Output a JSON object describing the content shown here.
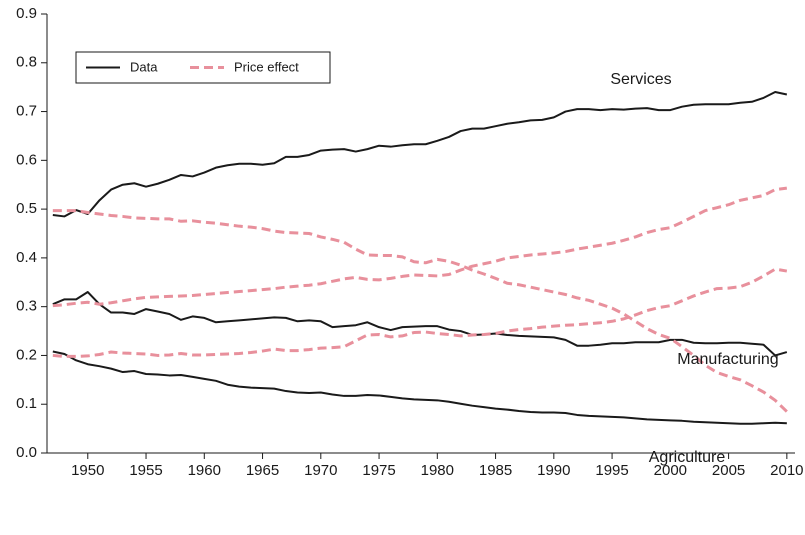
{
  "chart_data": {
    "type": "line",
    "x": [
      1947,
      1948,
      1949,
      1950,
      1951,
      1952,
      1953,
      1954,
      1955,
      1956,
      1957,
      1958,
      1959,
      1960,
      1961,
      1962,
      1963,
      1964,
      1965,
      1966,
      1967,
      1968,
      1969,
      1970,
      1971,
      1972,
      1973,
      1974,
      1975,
      1976,
      1977,
      1978,
      1979,
      1980,
      1981,
      1982,
      1983,
      1984,
      1985,
      1986,
      1987,
      1988,
      1989,
      1990,
      1991,
      1992,
      1993,
      1994,
      1995,
      1996,
      1997,
      1998,
      1999,
      2000,
      2001,
      2002,
      2003,
      2004,
      2005,
      2006,
      2007,
      2008,
      2009,
      2010
    ],
    "xlim": [
      1946.5,
      2010.7
    ],
    "xticks": [
      1950,
      1955,
      1960,
      1965,
      1970,
      1975,
      1980,
      1985,
      1990,
      1995,
      2000,
      2005,
      2010
    ],
    "ylim": [
      0,
      0.9
    ],
    "yticks": [
      {
        "value": 0,
        "label": "0.0"
      },
      0.1,
      0.2,
      0.3,
      0.4,
      0.5,
      0.6,
      0.7,
      0.8,
      0.9
    ],
    "legend_position": "upper left",
    "groups": [
      {
        "name": "Data",
        "color": "#1a1a1a",
        "dashed": false,
        "series": [
          {
            "name": "Services",
            "values": [
              0.488,
              0.485,
              0.498,
              0.49,
              0.518,
              0.54,
              0.55,
              0.553,
              0.546,
              0.552,
              0.56,
              0.57,
              0.567,
              0.575,
              0.585,
              0.59,
              0.593,
              0.593,
              0.591,
              0.594,
              0.607,
              0.607,
              0.611,
              0.62,
              0.622,
              0.623,
              0.618,
              0.623,
              0.63,
              0.628,
              0.631,
              0.633,
              0.633,
              0.64,
              0.648,
              0.66,
              0.665,
              0.665,
              0.67,
              0.675,
              0.678,
              0.682,
              0.683,
              0.688,
              0.7,
              0.705,
              0.705,
              0.703,
              0.705,
              0.704,
              0.706,
              0.707,
              0.703,
              0.703,
              0.71,
              0.714,
              0.715,
              0.715,
              0.715,
              0.718,
              0.72,
              0.728,
              0.74,
              0.735
            ]
          },
          {
            "name": "Manufacturing",
            "values": [
              0.305,
              0.315,
              0.315,
              0.33,
              0.305,
              0.288,
              0.288,
              0.285,
              0.295,
              0.29,
              0.285,
              0.273,
              0.28,
              0.277,
              0.268,
              0.27,
              0.272,
              0.274,
              0.276,
              0.278,
              0.277,
              0.27,
              0.272,
              0.27,
              0.258,
              0.26,
              0.262,
              0.268,
              0.258,
              0.252,
              0.258,
              0.259,
              0.26,
              0.26,
              0.253,
              0.25,
              0.242,
              0.243,
              0.245,
              0.242,
              0.24,
              0.239,
              0.238,
              0.237,
              0.232,
              0.22,
              0.22,
              0.222,
              0.225,
              0.225,
              0.227,
              0.227,
              0.227,
              0.232,
              0.232,
              0.226,
              0.225,
              0.225,
              0.226,
              0.226,
              0.224,
              0.222,
              0.2,
              0.207
            ]
          },
          {
            "name": "Agriculture",
            "values": [
              0.208,
              0.203,
              0.19,
              0.182,
              0.178,
              0.173,
              0.166,
              0.168,
              0.162,
              0.161,
              0.159,
              0.16,
              0.156,
              0.152,
              0.148,
              0.14,
              0.136,
              0.134,
              0.133,
              0.132,
              0.127,
              0.124,
              0.123,
              0.124,
              0.12,
              0.117,
              0.117,
              0.119,
              0.118,
              0.115,
              0.112,
              0.11,
              0.109,
              0.108,
              0.105,
              0.101,
              0.097,
              0.094,
              0.091,
              0.089,
              0.086,
              0.084,
              0.083,
              0.083,
              0.082,
              0.078,
              0.076,
              0.075,
              0.074,
              0.073,
              0.071,
              0.069,
              0.068,
              0.067,
              0.066,
              0.064,
              0.063,
              0.062,
              0.061,
              0.06,
              0.06,
              0.061,
              0.062,
              0.061
            ]
          }
        ]
      },
      {
        "name": "Price effect",
        "color": "#e8909c",
        "dashed": true,
        "series": [
          {
            "values": [
              0.302,
              0.304,
              0.307,
              0.309,
              0.305,
              0.308,
              0.312,
              0.316,
              0.319,
              0.32,
              0.321,
              0.322,
              0.323,
              0.325,
              0.327,
              0.329,
              0.331,
              0.333,
              0.335,
              0.337,
              0.34,
              0.342,
              0.344,
              0.347,
              0.352,
              0.357,
              0.36,
              0.356,
              0.355,
              0.358,
              0.362,
              0.365,
              0.364,
              0.363,
              0.366,
              0.375,
              0.383,
              0.388,
              0.393,
              0.4,
              0.403,
              0.406,
              0.408,
              0.41,
              0.413,
              0.418,
              0.422,
              0.426,
              0.43,
              0.436,
              0.443,
              0.452,
              0.458,
              0.462,
              0.473,
              0.485,
              0.497,
              0.503,
              0.509,
              0.518,
              0.523,
              0.528,
              0.54,
              0.543
            ]
          },
          {
            "values": [
              0.497,
              0.497,
              0.497,
              0.493,
              0.49,
              0.487,
              0.485,
              0.482,
              0.481,
              0.48,
              0.48,
              0.475,
              0.476,
              0.473,
              0.471,
              0.468,
              0.465,
              0.463,
              0.46,
              0.455,
              0.452,
              0.451,
              0.45,
              0.443,
              0.438,
              0.432,
              0.418,
              0.406,
              0.405,
              0.405,
              0.402,
              0.392,
              0.39,
              0.397,
              0.393,
              0.385,
              0.375,
              0.367,
              0.358,
              0.348,
              0.345,
              0.34,
              0.335,
              0.33,
              0.325,
              0.318,
              0.313,
              0.305,
              0.297,
              0.285,
              0.27,
              0.255,
              0.243,
              0.235,
              0.218,
              0.2,
              0.18,
              0.165,
              0.157,
              0.15,
              0.138,
              0.125,
              0.108,
              0.085
            ]
          },
          {
            "values": [
              0.2,
              0.198,
              0.198,
              0.199,
              0.202,
              0.207,
              0.205,
              0.204,
              0.203,
              0.2,
              0.201,
              0.204,
              0.201,
              0.201,
              0.202,
              0.203,
              0.204,
              0.206,
              0.209,
              0.213,
              0.21,
              0.21,
              0.212,
              0.215,
              0.216,
              0.218,
              0.23,
              0.242,
              0.243,
              0.238,
              0.24,
              0.247,
              0.248,
              0.245,
              0.243,
              0.24,
              0.242,
              0.243,
              0.245,
              0.25,
              0.253,
              0.255,
              0.258,
              0.26,
              0.262,
              0.263,
              0.265,
              0.267,
              0.27,
              0.275,
              0.283,
              0.292,
              0.298,
              0.302,
              0.312,
              0.322,
              0.33,
              0.337,
              0.338,
              0.341,
              0.35,
              0.363,
              0.377,
              0.373
            ]
          }
        ]
      }
    ]
  }
}
